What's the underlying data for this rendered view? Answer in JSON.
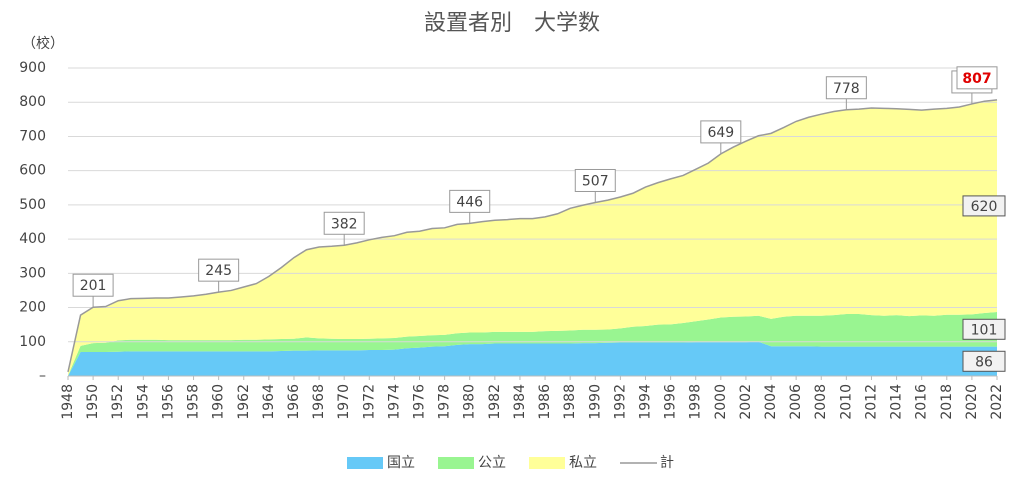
{
  "chart_data": {
    "type": "stacked_area",
    "title": "設置者別　大学数",
    "y_unit": "（校）",
    "x": [
      1948,
      1949,
      1950,
      1951,
      1952,
      1953,
      1954,
      1955,
      1956,
      1957,
      1958,
      1959,
      1960,
      1961,
      1962,
      1963,
      1964,
      1965,
      1966,
      1967,
      1968,
      1969,
      1970,
      1971,
      1972,
      1973,
      1974,
      1975,
      1976,
      1977,
      1978,
      1979,
      1980,
      1981,
      1982,
      1983,
      1984,
      1985,
      1986,
      1987,
      1988,
      1989,
      1990,
      1991,
      1992,
      1993,
      1994,
      1995,
      1996,
      1997,
      1998,
      1999,
      2000,
      2001,
      2002,
      2003,
      2004,
      2005,
      2006,
      2007,
      2008,
      2009,
      2010,
      2011,
      2012,
      2013,
      2014,
      2015,
      2016,
      2017,
      2018,
      2019,
      2020,
      2021,
      2022
    ],
    "xlim": [
      1948,
      2022
    ],
    "xticks": [
      1948,
      1950,
      1952,
      1954,
      1956,
      1958,
      1960,
      1962,
      1964,
      1966,
      1968,
      1970,
      1972,
      1974,
      1976,
      1978,
      1980,
      1982,
      1984,
      1986,
      1988,
      1990,
      1992,
      1994,
      1996,
      1998,
      2000,
      2002,
      2004,
      2006,
      2008,
      2010,
      2012,
      2014,
      2016,
      2018,
      2020,
      2022
    ],
    "ylim": [
      0,
      900
    ],
    "yticks": [
      {
        "value": 0,
        "label": "–"
      },
      100,
      200,
      300,
      400,
      500,
      600,
      700,
      800,
      900
    ],
    "grid": true,
    "series": [
      {
        "name": "国立",
        "color": "#66c9f7",
        "values": [
          0,
          70,
          70,
          70,
          71,
          72,
          72,
          72,
          72,
          72,
          72,
          72,
          72,
          72,
          72,
          72,
          72,
          73,
          74,
          74,
          75,
          75,
          75,
          75,
          76,
          76,
          77,
          81,
          83,
          86,
          87,
          91,
          93,
          93,
          95,
          95,
          95,
          95,
          95,
          95,
          95,
          96,
          96,
          97,
          98,
          98,
          98,
          98,
          98,
          98,
          99,
          99,
          99,
          99,
          99,
          100,
          87,
          87,
          87,
          87,
          86,
          86,
          86,
          86,
          86,
          86,
          86,
          86,
          86,
          86,
          86,
          86,
          86,
          86,
          86
        ]
      },
      {
        "name": "公立",
        "color": "#99f591",
        "values": [
          1,
          18,
          26,
          27,
          33,
          34,
          34,
          34,
          33,
          33,
          33,
          33,
          33,
          33,
          34,
          34,
          35,
          35,
          35,
          39,
          35,
          34,
          33,
          33,
          33,
          34,
          34,
          34,
          34,
          33,
          33,
          34,
          34,
          34,
          34,
          34,
          34,
          34,
          36,
          37,
          38,
          39,
          39,
          39,
          41,
          46,
          48,
          52,
          53,
          57,
          61,
          66,
          72,
          74,
          75,
          76,
          80,
          86,
          89,
          89,
          90,
          92,
          95,
          95,
          92,
          90,
          92,
          89,
          91,
          90,
          93,
          93,
          94,
          98,
          101
        ]
      },
      {
        "name": "私立",
        "color": "#ffff99",
        "values": [
          11,
          90,
          105,
          106,
          116,
          120,
          121,
          122,
          123,
          126,
          129,
          134,
          140,
          145,
          154,
          164,
          184,
          209,
          237,
          256,
          267,
          270,
          274,
          281,
          289,
          295,
          299,
          305,
          306,
          312,
          313,
          318,
          319,
          324,
          326,
          328,
          331,
          331,
          334,
          342,
          357,
          364,
          372,
          378,
          384,
          390,
          406,
          415,
          425,
          431,
          444,
          457,
          478,
          496,
          512,
          526,
          542,
          553,
          568,
          580,
          589,
          595,
          597,
          599,
          605,
          606,
          603,
          604,
          600,
          604,
          603,
          607,
          615,
          619,
          620
        ]
      },
      {
        "name": "計",
        "color": "#999999",
        "type": "line",
        "values": [
          12,
          178,
          201,
          203,
          220,
          226,
          227,
          228,
          228,
          231,
          234,
          239,
          245,
          250,
          260,
          270,
          291,
          317,
          346,
          369,
          377,
          379,
          382,
          389,
          398,
          405,
          410,
          420,
          423,
          431,
          433,
          443,
          446,
          451,
          455,
          457,
          460,
          460,
          465,
          474,
          490,
          499,
          507,
          514,
          523,
          534,
          552,
          565,
          576,
          586,
          604,
          622,
          649,
          669,
          686,
          702,
          709,
          726,
          744,
          756,
          765,
          773,
          778,
          780,
          783,
          782,
          781,
          779,
          777,
          780,
          782,
          786,
          795,
          803,
          807
        ]
      }
    ],
    "highlight_color": "#e00000"
  }
}
